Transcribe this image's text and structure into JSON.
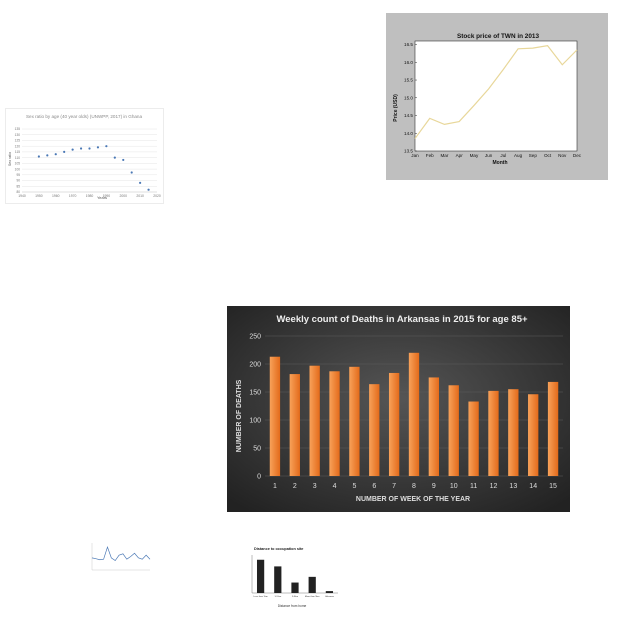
{
  "chart_data": [
    {
      "id": "sex",
      "type": "scatter",
      "title": "Sex ratio by age (40 year olds) (UNWPP, 2017) in Ghana",
      "xlabel": "Years",
      "ylabel": "Sex ratio",
      "x_ticks": [
        1940,
        1950,
        1960,
        1970,
        1980,
        1990,
        2000,
        2010,
        2020
      ],
      "y_ticks": [
        80,
        85,
        90,
        95,
        100,
        105,
        110,
        115,
        120,
        125,
        130,
        135
      ],
      "xlim": [
        1940,
        2020
      ],
      "ylim": [
        80,
        135
      ],
      "x": [
        1950,
        1955,
        1960,
        1965,
        1970,
        1975,
        1980,
        1985,
        1990,
        1995,
        2000,
        2005,
        2010,
        2015
      ],
      "y": [
        111,
        112,
        113,
        115,
        117,
        118,
        118,
        119,
        120,
        110,
        108,
        97,
        88,
        82
      ],
      "color": "#4a78b5"
    },
    {
      "id": "stock",
      "type": "line",
      "title": "Stock price of TWN in 2013",
      "xlabel": "Month",
      "ylabel": "Price (USD)",
      "categories": [
        "Jan",
        "Feb",
        "Mar",
        "Apr",
        "May",
        "Jun",
        "Jul",
        "Aug",
        "Sep",
        "Oct",
        "Nov",
        "Dec"
      ],
      "y_ticks": [
        "13.5",
        "14.0",
        "14.5",
        "15.0",
        "15.5",
        "16.0",
        "16.5"
      ],
      "ylim": [
        13.5,
        16.6
      ],
      "values": [
        13.85,
        14.42,
        14.25,
        14.33,
        14.78,
        15.25,
        15.8,
        16.38,
        16.4,
        16.47,
        15.93,
        16.35
      ],
      "color": "#e8d79a"
    },
    {
      "id": "deaths",
      "type": "bar",
      "title": "Weekly count of Deaths in Arkansas in 2015 for age 85+",
      "xlabel": "NUMBER OF WEEK OF THE YEAR",
      "ylabel": "NUMBER OF DEATHS",
      "categories": [
        "1",
        "2",
        "3",
        "4",
        "5",
        "6",
        "7",
        "8",
        "9",
        "10",
        "11",
        "12",
        "13",
        "14",
        "15"
      ],
      "values": [
        213,
        182,
        197,
        187,
        195,
        164,
        184,
        220,
        176,
        162,
        133,
        152,
        155,
        146,
        168
      ],
      "y_ticks": [
        0,
        50,
        100,
        150,
        200,
        250
      ],
      "ylim": [
        0,
        250
      ],
      "grid": true,
      "color": "#f07a2a"
    },
    {
      "id": "mini",
      "type": "line",
      "x": [
        1,
        2,
        3,
        4,
        5,
        6,
        7,
        8,
        9,
        10,
        11,
        12,
        13,
        14,
        15,
        16
      ],
      "values": [
        45,
        42,
        38,
        40,
        85,
        45,
        35,
        55,
        60,
        40,
        50,
        62,
        45,
        40,
        55,
        40
      ],
      "ylim": [
        0,
        100
      ],
      "color": "#4a78b5"
    },
    {
      "id": "occ",
      "type": "bar",
      "title": "Distance to occupation site",
      "xlabel": "Distance from home",
      "categories": [
        "Less than 1km",
        "1-3 km",
        "3-5km",
        "More than 5km",
        "Unknown"
      ],
      "values": [
        35,
        28,
        11,
        17,
        2
      ],
      "ylim": [
        0,
        40
      ],
      "color": "#222222"
    }
  ]
}
